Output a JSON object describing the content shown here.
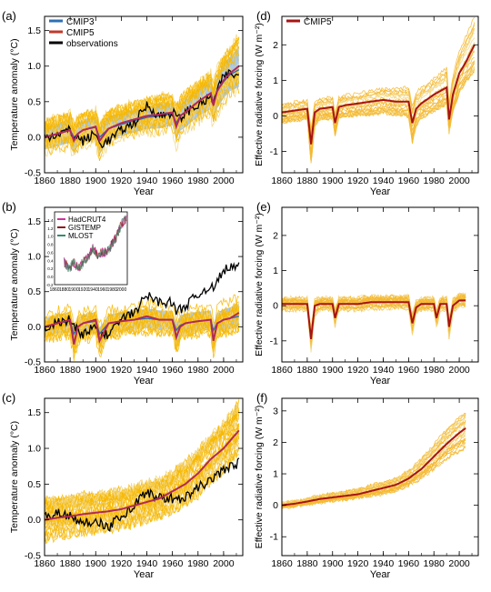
{
  "colors": {
    "cmip3": "#9dbfe0",
    "cmip3_mean": "#2f6fb3",
    "cmip5": "#f7b800",
    "cmip5_light": "#f2d680",
    "cmip5_mean": "#b5121b",
    "observations": "#000000",
    "hadcrut4": "#cc3399",
    "gistemp": "#8b1a1a",
    "mlost": "#3a8a6a",
    "forcing_ensemble": "#f5b830",
    "forcing_mean": "#a61414"
  },
  "chart_data": [
    {
      "panel": "(a)",
      "type": "line",
      "xlabel": "Year",
      "ylabel": "Temperature anomaly (°C)",
      "xlim": [
        1860,
        2015
      ],
      "ylim": [
        -0.5,
        1.7
      ],
      "xticks": [
        1860,
        1880,
        1900,
        1920,
        1940,
        1960,
        1980,
        2000
      ],
      "yticks": [
        -0.5,
        0.0,
        0.5,
        1.0,
        1.5
      ],
      "yticklabels": [
        "-0.5",
        "0.0",
        "0.5",
        "1.0",
        "1.5"
      ],
      "legend": [
        "CMIP3",
        "CMIP5",
        "observations"
      ],
      "legend_position": "top-left",
      "x": [
        1860,
        1870,
        1880,
        1883,
        1886,
        1890,
        1900,
        1903,
        1910,
        1920,
        1930,
        1940,
        1950,
        1960,
        1963,
        1966,
        1970,
        1980,
        1990,
        1992,
        1995,
        2000,
        2005,
        2012
      ],
      "series": [
        {
          "name": "CMIP5",
          "values": [
            0.0,
            0.05,
            0.1,
            -0.05,
            0.05,
            0.1,
            0.15,
            -0.05,
            0.12,
            0.2,
            0.25,
            0.3,
            0.32,
            0.35,
            0.15,
            0.3,
            0.35,
            0.5,
            0.62,
            0.45,
            0.65,
            0.8,
            0.9,
            1.0
          ]
        },
        {
          "name": "CMIP3",
          "values": [
            0.0,
            0.04,
            0.1,
            0.0,
            0.05,
            0.1,
            0.14,
            0.0,
            0.12,
            0.18,
            0.23,
            0.28,
            0.3,
            0.33,
            0.2,
            0.3,
            0.35,
            0.5,
            0.62,
            0.5,
            0.65,
            0.78,
            0.88,
            0.95
          ]
        },
        {
          "name": "observations",
          "values": [
            0.0,
            0.05,
            0.1,
            0.0,
            0.0,
            -0.05,
            0.05,
            -0.1,
            -0.05,
            0.1,
            0.2,
            0.45,
            0.3,
            0.35,
            0.3,
            0.25,
            0.35,
            0.45,
            0.55,
            0.5,
            0.65,
            0.85,
            0.9,
            0.85
          ]
        }
      ],
      "ensemble_range": {
        "low": [
          -0.25,
          -0.2,
          -0.15,
          -0.35,
          -0.2,
          -0.15,
          -0.1,
          -0.35,
          -0.1,
          -0.05,
          0.0,
          0.05,
          0.05,
          0.1,
          -0.15,
          0.0,
          0.05,
          0.2,
          0.3,
          0.1,
          0.3,
          0.45,
          0.55,
          0.6
        ],
        "high": [
          0.25,
          0.3,
          0.35,
          0.2,
          0.3,
          0.35,
          0.4,
          0.2,
          0.4,
          0.45,
          0.5,
          0.55,
          0.6,
          0.6,
          0.45,
          0.6,
          0.65,
          0.8,
          0.95,
          0.8,
          1.0,
          1.2,
          1.3,
          1.5
        ]
      }
    },
    {
      "panel": "(b)",
      "type": "line",
      "xlabel": "Year",
      "ylabel": "Temperature anomaly (°C)",
      "xlim": [
        1860,
        2015
      ],
      "ylim": [
        -0.5,
        1.7
      ],
      "xticks": [
        1860,
        1880,
        1900,
        1920,
        1940,
        1960,
        1980,
        2000
      ],
      "yticks": [
        -0.5,
        0.0,
        0.5,
        1.0,
        1.5
      ],
      "yticklabels": [
        "-0.5",
        "0.0",
        "0.5",
        "1.0",
        "1.5"
      ],
      "x": [
        1860,
        1870,
        1880,
        1883,
        1886,
        1890,
        1900,
        1903,
        1910,
        1920,
        1930,
        1940,
        1950,
        1960,
        1963,
        1966,
        1970,
        1980,
        1990,
        1992,
        1995,
        2000,
        2005,
        2012
      ],
      "series": [
        {
          "name": "CMIP5",
          "values": [
            0.0,
            0.05,
            0.1,
            -0.25,
            0.0,
            0.05,
            0.1,
            -0.2,
            0.05,
            0.08,
            0.1,
            0.15,
            0.1,
            0.1,
            -0.15,
            0.0,
            0.05,
            0.08,
            0.1,
            -0.2,
            0.05,
            0.1,
            0.12,
            0.2
          ]
        },
        {
          "name": "CMIP3",
          "values": [
            0.0,
            0.05,
            0.08,
            -0.1,
            0.0,
            0.05,
            0.08,
            -0.1,
            0.05,
            0.08,
            0.1,
            0.12,
            0.1,
            0.1,
            -0.05,
            0.02,
            0.05,
            0.08,
            0.1,
            -0.05,
            0.05,
            0.1,
            0.12,
            0.15
          ]
        },
        {
          "name": "observations",
          "values": [
            0.0,
            0.05,
            0.1,
            0.0,
            -0.05,
            -0.1,
            0.0,
            -0.15,
            -0.1,
            0.1,
            0.2,
            0.45,
            0.35,
            0.35,
            0.2,
            0.25,
            0.3,
            0.45,
            0.6,
            0.5,
            0.65,
            0.8,
            0.85,
            0.85
          ]
        }
      ],
      "ensemble_range": {
        "low": [
          -0.2,
          -0.15,
          -0.15,
          -0.45,
          -0.25,
          -0.2,
          -0.15,
          -0.4,
          -0.15,
          -0.12,
          -0.1,
          -0.08,
          -0.1,
          -0.1,
          -0.35,
          -0.2,
          -0.15,
          -0.12,
          -0.1,
          -0.45,
          -0.15,
          -0.12,
          -0.1,
          -0.05
        ],
        "high": [
          0.2,
          0.25,
          0.3,
          0.05,
          0.2,
          0.25,
          0.3,
          0.05,
          0.25,
          0.3,
          0.3,
          0.35,
          0.32,
          0.3,
          0.1,
          0.25,
          0.28,
          0.3,
          0.32,
          0.1,
          0.3,
          0.35,
          0.38,
          0.45
        ]
      },
      "inset": {
        "legend": [
          "HadCRUT4",
          "GISTEMP",
          "MLOST"
        ],
        "xlim": [
          1860,
          2012
        ],
        "ylim": [
          -0.2,
          1.6
        ],
        "xticks": [
          1860,
          1880,
          1900,
          1920,
          1940,
          1960,
          1980,
          2000
        ],
        "yticks": [
          -0.2,
          0.0,
          0.2,
          0.4,
          0.6,
          0.8,
          1.0,
          1.2,
          1.4
        ],
        "yticklabels": [
          "-0.2",
          "0.0",
          "0.2",
          "0.4",
          "0.6",
          "0.8",
          "1.0",
          "1.2",
          "1.4"
        ],
        "x": [
          1860,
          1870,
          1880,
          1890,
          1900,
          1910,
          1920,
          1930,
          1940,
          1950,
          1960,
          1970,
          1980,
          1990,
          2000,
          2010
        ],
        "values": [
          0.3,
          0.4,
          0.35,
          0.2,
          0.35,
          0.2,
          0.35,
          0.5,
          0.7,
          0.55,
          0.6,
          0.6,
          0.8,
          1.0,
          1.3,
          1.45
        ]
      }
    },
    {
      "panel": "(c)",
      "type": "line",
      "xlabel": "Year",
      "ylabel": "Temperature anomaly (°C)",
      "xlim": [
        1860,
        2015
      ],
      "ylim": [
        -0.5,
        1.7
      ],
      "xticks": [
        1860,
        1880,
        1900,
        1920,
        1940,
        1960,
        1980,
        2000
      ],
      "yticks": [
        -0.5,
        0.0,
        0.5,
        1.0,
        1.5
      ],
      "yticklabels": [
        "-0.5",
        "0.0",
        "0.5",
        "1.0",
        "1.5"
      ],
      "x": [
        1860,
        1870,
        1880,
        1890,
        1900,
        1910,
        1920,
        1930,
        1940,
        1950,
        1960,
        1970,
        1980,
        1990,
        2000,
        2012
      ],
      "series": [
        {
          "name": "CMIP5",
          "values": [
            0.0,
            0.03,
            0.05,
            0.08,
            0.1,
            0.12,
            0.15,
            0.2,
            0.25,
            0.3,
            0.4,
            0.5,
            0.65,
            0.85,
            1.0,
            1.25
          ]
        },
        {
          "name": "observations",
          "values": [
            0.05,
            0.1,
            0.05,
            -0.05,
            0.0,
            -0.1,
            0.05,
            0.2,
            0.4,
            0.3,
            0.3,
            0.3,
            0.45,
            0.55,
            0.7,
            0.8
          ]
        }
      ],
      "ensemble_range": {
        "low": [
          -0.3,
          -0.25,
          -0.22,
          -0.2,
          -0.18,
          -0.15,
          -0.12,
          -0.08,
          -0.02,
          0.03,
          0.1,
          0.2,
          0.3,
          0.5,
          0.65,
          0.9
        ],
        "high": [
          0.3,
          0.32,
          0.35,
          0.38,
          0.4,
          0.42,
          0.45,
          0.5,
          0.55,
          0.6,
          0.7,
          0.85,
          1.0,
          1.25,
          1.4,
          1.7
        ]
      }
    },
    {
      "panel": "(d)",
      "type": "line",
      "xlabel": "Year",
      "ylabel": "Effective radiative forcing (W m⁻²)",
      "xlim": [
        1860,
        2015
      ],
      "ylim": [
        -1.6,
        2.8
      ],
      "xticks": [
        1860,
        1880,
        1900,
        1920,
        1940,
        1960,
        1980,
        2000
      ],
      "yticks": [
        -1,
        0,
        1,
        2
      ],
      "yticklabels": [
        "-1",
        "0",
        "1",
        "2"
      ],
      "legend": [
        "CMIP5"
      ],
      "legend_position": "top-left",
      "x": [
        1860,
        1870,
        1880,
        1883,
        1886,
        1890,
        1900,
        1902,
        1905,
        1910,
        1920,
        1930,
        1940,
        1950,
        1960,
        1963,
        1966,
        1970,
        1980,
        1990,
        1992,
        1995,
        2000,
        2005,
        2012
      ],
      "series": [
        {
          "name": "CMIP5",
          "values": [
            0.1,
            0.15,
            0.2,
            -0.8,
            0.1,
            0.2,
            0.25,
            -0.2,
            0.25,
            0.3,
            0.35,
            0.4,
            0.45,
            0.4,
            0.4,
            -0.2,
            0.2,
            0.35,
            0.6,
            0.8,
            -0.1,
            0.6,
            1.2,
            1.5,
            2.0
          ]
        }
      ],
      "ensemble_range": {
        "low": [
          -0.2,
          -0.15,
          -0.1,
          -1.4,
          -0.3,
          -0.1,
          -0.1,
          -0.6,
          -0.1,
          -0.05,
          0.0,
          0.0,
          0.05,
          0.0,
          -0.05,
          -0.8,
          -0.3,
          -0.1,
          0.1,
          0.3,
          -0.5,
          0.1,
          0.6,
          0.9,
          1.2
        ],
        "high": [
          0.35,
          0.4,
          0.45,
          -0.3,
          0.4,
          0.5,
          0.55,
          0.1,
          0.55,
          0.6,
          0.65,
          0.75,
          0.8,
          0.8,
          0.85,
          0.3,
          0.7,
          0.85,
          1.1,
          1.4,
          0.4,
          1.2,
          1.9,
          2.3,
          2.9
        ]
      }
    },
    {
      "panel": "(e)",
      "type": "line",
      "xlabel": "Year",
      "ylabel": "Effective radiative forcing (W m⁻²)",
      "xlim": [
        1860,
        2015
      ],
      "ylim": [
        -1.6,
        2.8
      ],
      "xticks": [
        1860,
        1880,
        1900,
        1920,
        1940,
        1960,
        1980,
        2000
      ],
      "yticks": [
        -1,
        0,
        1,
        2
      ],
      "yticklabels": [
        "-1",
        "0",
        "1",
        "2"
      ],
      "x": [
        1860,
        1870,
        1880,
        1883,
        1886,
        1890,
        1900,
        1902,
        1905,
        1910,
        1920,
        1930,
        1940,
        1950,
        1960,
        1963,
        1966,
        1970,
        1980,
        1982,
        1985,
        1990,
        1992,
        1995,
        2000,
        2005
      ],
      "series": [
        {
          "name": "CMIP5",
          "values": [
            0.05,
            0.05,
            0.05,
            -0.95,
            0.0,
            0.05,
            0.05,
            -0.35,
            0.05,
            0.05,
            0.05,
            0.1,
            0.1,
            0.1,
            0.1,
            -0.5,
            -0.05,
            0.05,
            0.05,
            -0.35,
            0.05,
            0.05,
            -0.6,
            0.0,
            0.15,
            0.15
          ]
        }
      ],
      "ensemble_range": {
        "low": [
          -0.15,
          -0.15,
          -0.15,
          -1.35,
          -0.3,
          -0.15,
          -0.15,
          -0.6,
          -0.15,
          -0.15,
          -0.15,
          -0.1,
          -0.1,
          -0.1,
          -0.1,
          -0.85,
          -0.25,
          -0.15,
          -0.15,
          -0.65,
          -0.15,
          -0.15,
          -0.95,
          -0.2,
          -0.05,
          -0.05
        ],
        "high": [
          0.25,
          0.25,
          0.25,
          -0.6,
          0.2,
          0.25,
          0.25,
          -0.1,
          0.25,
          0.25,
          0.25,
          0.3,
          0.3,
          0.3,
          0.3,
          -0.2,
          0.15,
          0.25,
          0.25,
          -0.1,
          0.25,
          0.25,
          -0.3,
          0.2,
          0.35,
          0.4
        ]
      }
    },
    {
      "panel": "(f)",
      "type": "line",
      "xlabel": "Year",
      "ylabel": "Effective radiative forcing (W m⁻²)",
      "xlim": [
        1860,
        2015
      ],
      "ylim": [
        -1.6,
        3.4
      ],
      "xticks": [
        1860,
        1880,
        1900,
        1920,
        1940,
        1960,
        1980,
        2000
      ],
      "yticks": [
        -1,
        0,
        1,
        2,
        3
      ],
      "yticklabels": [
        "-1",
        "0",
        "1",
        "2",
        "3"
      ],
      "x": [
        1860,
        1870,
        1880,
        1890,
        1900,
        1910,
        1920,
        1930,
        1940,
        1950,
        1960,
        1970,
        1980,
        1990,
        2000,
        2005
      ],
      "series": [
        {
          "name": "CMIP5",
          "values": [
            0.0,
            0.05,
            0.12,
            0.2,
            0.25,
            0.3,
            0.35,
            0.45,
            0.55,
            0.65,
            0.85,
            1.15,
            1.55,
            1.95,
            2.3,
            2.45
          ]
        }
      ],
      "ensemble_range": {
        "low": [
          -0.1,
          -0.05,
          0.0,
          0.05,
          0.1,
          0.15,
          0.2,
          0.25,
          0.3,
          0.4,
          0.55,
          0.75,
          1.0,
          1.3,
          1.5,
          1.6
        ],
        "high": [
          0.1,
          0.15,
          0.25,
          0.35,
          0.45,
          0.5,
          0.6,
          0.7,
          0.8,
          0.95,
          1.2,
          1.6,
          2.1,
          2.6,
          3.0,
          3.2
        ]
      }
    }
  ]
}
